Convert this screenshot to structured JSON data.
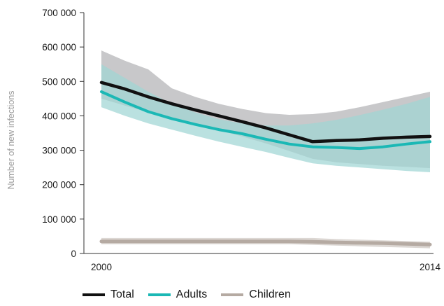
{
  "chart_data": {
    "type": "line",
    "ylabel": "Number of new infections",
    "xlabel": "",
    "title": "",
    "xlim": [
      2000,
      2014
    ],
    "ylim": [
      0,
      700000
    ],
    "y_ticks": [
      0,
      100000,
      200000,
      300000,
      400000,
      500000,
      600000,
      700000
    ],
    "y_tick_labels": [
      "0",
      "100 000",
      "200 000",
      "300 000",
      "400 000",
      "500 000",
      "600 000",
      "700 000"
    ],
    "x_tick_labels": [
      {
        "value": 2000,
        "label": "2000"
      },
      {
        "value": 2014,
        "label": "2014"
      }
    ],
    "x": [
      2000,
      2001,
      2002,
      2003,
      2004,
      2005,
      2006,
      2007,
      2008,
      2009,
      2010,
      2011,
      2012,
      2013,
      2014
    ],
    "series": [
      {
        "name": "Total",
        "color": "#111111",
        "values": [
          497000,
          478000,
          455000,
          435000,
          417000,
          400000,
          383000,
          365000,
          345000,
          325000,
          328000,
          330000,
          335000,
          338000,
          340000
        ],
        "upper": [
          590000,
          560000,
          535000,
          480000,
          455000,
          435000,
          420000,
          408000,
          403000,
          405000,
          412000,
          425000,
          440000,
          455000,
          470000
        ],
        "lower": [
          450000,
          430000,
          410000,
          392000,
          375000,
          358000,
          340000,
          320000,
          298000,
          275000,
          265000,
          260000,
          255000,
          252000,
          248000
        ]
      },
      {
        "name": "Adults",
        "color": "#1bb8b5",
        "values": [
          470000,
          440000,
          412000,
          392000,
          375000,
          360000,
          348000,
          332000,
          318000,
          310000,
          308000,
          305000,
          310000,
          318000,
          325000
        ],
        "upper": [
          550000,
          510000,
          470000,
          435000,
          410000,
          390000,
          378000,
          372000,
          372000,
          378000,
          388000,
          402000,
          418000,
          435000,
          455000
        ],
        "lower": [
          425000,
          400000,
          378000,
          360000,
          342000,
          325000,
          310000,
          295000,
          278000,
          262000,
          255000,
          250000,
          245000,
          240000,
          236000
        ]
      },
      {
        "name": "Children",
        "color": "#b5aaa2",
        "values": [
          35000,
          35000,
          35000,
          35000,
          35000,
          35000,
          35000,
          35000,
          35000,
          34000,
          32000,
          31000,
          30000,
          28000,
          26000
        ],
        "upper": [
          45000,
          45000,
          45000,
          45000,
          45000,
          45000,
          45000,
          45000,
          45000,
          45000,
          42000,
          40000,
          38000,
          36000,
          34000
        ],
        "lower": [
          27000,
          27000,
          27000,
          27000,
          27000,
          27000,
          27000,
          27000,
          27000,
          25000,
          23000,
          21000,
          19000,
          17000,
          15000
        ]
      }
    ],
    "bands": [
      {
        "series": "Total",
        "color": "#b3b3b5"
      },
      {
        "series": "Adults",
        "color": "#9fd6d4"
      },
      {
        "series": "Children",
        "color": "#cfc7c2"
      }
    ],
    "grid": false,
    "legend_position": "bottom-left"
  }
}
